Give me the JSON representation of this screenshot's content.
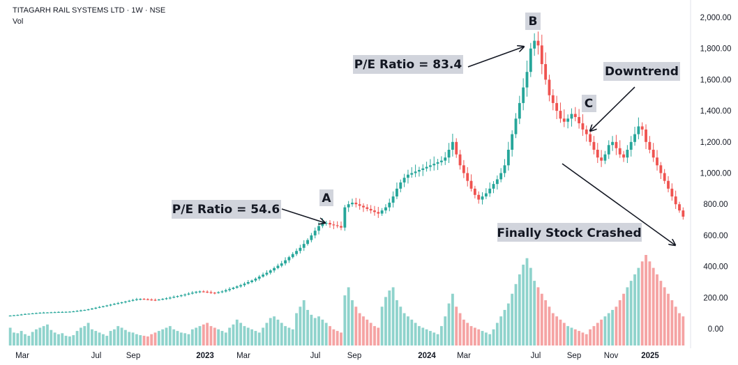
{
  "header": {
    "symbol": "TITAGARH RAIL SYSTEMS LTD · 1W · NSE",
    "indicator": "Vol"
  },
  "colors": {
    "up": "#26a69a",
    "down": "#ef5350",
    "up_vol": "#8fd3cc",
    "down_vol": "#f5a3a3",
    "label_bg": "#d1d4dc",
    "text": "#131722"
  },
  "chart_data": {
    "type": "candlestick",
    "y_axis_labels": [
      "2,000.00",
      "1,800.00",
      "1,600.00",
      "1,400.00",
      "1,200.00",
      "1,000.00",
      "800.00",
      "600.00",
      "400.00",
      "200.00",
      "0.00"
    ],
    "x_axis_labels": [
      {
        "text": "Mar",
        "bold": false
      },
      {
        "text": "Jul",
        "bold": false
      },
      {
        "text": "Sep",
        "bold": false
      },
      {
        "text": "2023",
        "bold": true
      },
      {
        "text": "Mar",
        "bold": false
      },
      {
        "text": "Jul",
        "bold": false
      },
      {
        "text": "Sep",
        "bold": false
      },
      {
        "text": "2024",
        "bold": true
      },
      {
        "text": "Mar",
        "bold": false
      },
      {
        "text": "Jul",
        "bold": false
      },
      {
        "text": "Sep",
        "bold": false
      },
      {
        "text": "Nov",
        "bold": false
      },
      {
        "text": "2025",
        "bold": true
      }
    ],
    "price_series": [
      85,
      87,
      89,
      92,
      95,
      97,
      99,
      101,
      103,
      104,
      105,
      106,
      107,
      108,
      108,
      109,
      110,
      112,
      115,
      118,
      121,
      125,
      130,
      135,
      140,
      145,
      150,
      155,
      160,
      165,
      170,
      175,
      180,
      185,
      190,
      192,
      190,
      188,
      186,
      185,
      188,
      192,
      196,
      200,
      205,
      210,
      215,
      220,
      226,
      232,
      238,
      240,
      238,
      235,
      232,
      230,
      235,
      240,
      248,
      256,
      264,
      272,
      280,
      290,
      300,
      310,
      322,
      335,
      348,
      360,
      375,
      390,
      405,
      420,
      440,
      460,
      480,
      500,
      520,
      545,
      570,
      600,
      630,
      660,
      680,
      680,
      670,
      665,
      660,
      650,
      780,
      800,
      810,
      800,
      790,
      780,
      770,
      760,
      750,
      740,
      760,
      780,
      810,
      850,
      900,
      940,
      970,
      990,
      1000,
      1010,
      1020,
      1030,
      1040,
      1050,
      1060,
      1070,
      1080,
      1100,
      1150,
      1200,
      1120,
      1050,
      1000,
      950,
      900,
      860,
      830,
      850,
      870,
      900,
      930,
      960,
      1000,
      1050,
      1150,
      1250,
      1350,
      1450,
      1550,
      1650,
      1800,
      1850,
      1820,
      1700,
      1600,
      1500,
      1450,
      1400,
      1350,
      1330,
      1350,
      1380,
      1360,
      1320,
      1280,
      1250,
      1200,
      1150,
      1100,
      1080,
      1120,
      1180,
      1200,
      1160,
      1120,
      1100,
      1150,
      1200,
      1250,
      1300,
      1280,
      1200,
      1150,
      1100,
      1050,
      1000,
      950,
      900,
      850,
      800,
      760,
      720
    ],
    "volume_series": [
      55,
      40,
      38,
      45,
      35,
      30,
      42,
      50,
      55,
      60,
      65,
      48,
      40,
      35,
      38,
      30,
      28,
      32,
      45,
      55,
      60,
      70,
      50,
      45,
      40,
      35,
      30,
      45,
      50,
      60,
      55,
      48,
      42,
      40,
      35,
      32,
      30,
      28,
      35,
      40,
      45,
      50,
      55,
      60,
      50,
      45,
      40,
      38,
      35,
      50,
      55,
      60,
      65,
      70,
      60,
      55,
      50,
      45,
      40,
      55,
      65,
      80,
      70,
      60,
      55,
      50,
      45,
      40,
      55,
      70,
      85,
      90,
      80,
      70,
      60,
      55,
      50,
      100,
      120,
      140,
      110,
      95,
      85,
      90,
      80,
      70,
      60,
      50,
      45,
      40,
      155,
      180,
      140,
      120,
      100,
      90,
      80,
      70,
      60,
      55,
      120,
      150,
      170,
      180,
      140,
      120,
      100,
      90,
      80,
      70,
      60,
      55,
      50,
      45,
      40,
      35,
      60,
      90,
      130,
      160,
      120,
      100,
      80,
      70,
      60,
      55,
      50,
      45,
      40,
      35,
      50,
      70,
      90,
      110,
      130,
      160,
      190,
      220,
      250,
      270,
      240,
      200,
      180,
      160,
      140,
      120,
      100,
      90,
      80,
      70,
      60,
      55,
      50,
      45,
      40,
      35,
      50,
      60,
      70,
      80,
      90,
      100,
      110,
      120,
      140,
      160,
      180,
      200,
      220,
      240,
      260,
      280,
      260,
      240,
      220,
      200,
      180,
      160,
      140,
      120,
      100,
      90,
      80,
      70,
      60,
      150
    ]
  },
  "annotations": {
    "pe_a": "P/E Ratio = 54.6",
    "point_a": "A",
    "pe_b": "P/E Ratio = 83.4",
    "point_b": "B",
    "point_c": "C",
    "downtrend": "Downtrend",
    "crash": "Finally Stock Crashed"
  }
}
